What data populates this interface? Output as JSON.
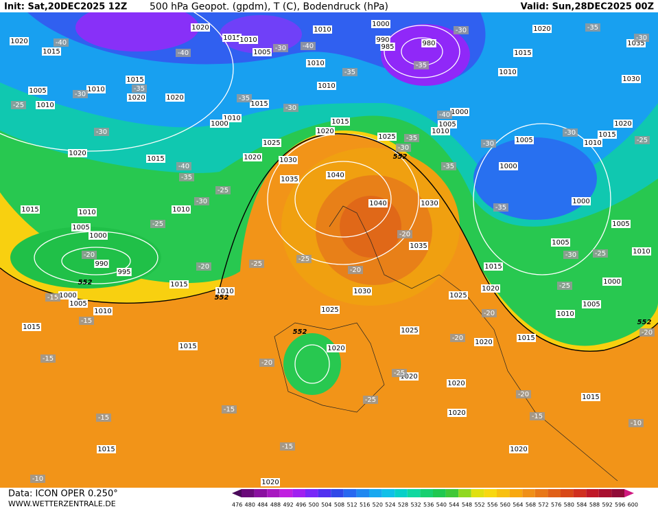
{
  "header": {
    "init": "Init: Sat,20DEC2025 12Z",
    "title": "500 hPa Geopot. (gpdm), T (C), Bodendruck (hPa)",
    "valid": "Valid: Sun,28DEC2025 00Z"
  },
  "footer": {
    "data": "Data: ICON OPER 0.250°",
    "site": "WWW.WETTERZENTRALE.DE"
  },
  "colorbar": {
    "labels": [
      476,
      480,
      484,
      488,
      492,
      496,
      500,
      504,
      508,
      512,
      516,
      520,
      524,
      528,
      532,
      536,
      540,
      544,
      548,
      552,
      556,
      560,
      564,
      568,
      572,
      576,
      580,
      584,
      588,
      592,
      596,
      600
    ],
    "colors": [
      "#4a0a5a",
      "#6a0a7a",
      "#8a10a0",
      "#a818c0",
      "#c020e0",
      "#a020f0",
      "#7828f8",
      "#5030f0",
      "#3048e8",
      "#2868f0",
      "#2088f0",
      "#18a8f0",
      "#10c0e8",
      "#08d0c8",
      "#10d8a0",
      "#18d070",
      "#20c850",
      "#40c838",
      "#90d820",
      "#e0e010",
      "#f8d810",
      "#f8c010",
      "#f8a810",
      "#f09018",
      "#e87818",
      "#e06018",
      "#d84818",
      "#d03020",
      "#c01828",
      "#a81030",
      "#900c38",
      "#d01880"
    ]
  },
  "map": {
    "pressure_labels": [
      1020,
      1015,
      1020,
      1015,
      1010,
      1005,
      1010,
      1000,
      990,
      985,
      980,
      1010,
      1010,
      1020,
      1015,
      1035,
      1010,
      1030,
      1005,
      1010,
      1015,
      1020,
      1010,
      1020,
      1015,
      1010,
      1000,
      1000,
      1005,
      1010,
      1015,
      1020,
      1025,
      1025,
      1020,
      1020,
      1015,
      1030,
      1035,
      1040,
      1020,
      1015,
      1010,
      1005,
      1000,
      1040,
      1030,
      1000,
      1015,
      1010,
      1010,
      1005,
      1000,
      990,
      995,
      1035,
      1005,
      1005,
      1010,
      1015,
      1015,
      1010,
      1000,
      1005,
      1010,
      1015,
      1030,
      1025,
      1020,
      1025,
      1000,
      1005,
      1010,
      1025,
      1015,
      1020,
      1015,
      1020,
      1020,
      1020,
      1015,
      1020,
      1015,
      1020,
      1020
    ],
    "temperature_labels": [
      -40,
      -40,
      -30,
      -40,
      -35,
      -35,
      -30,
      -25,
      -30,
      -35,
      -30,
      -35,
      -30,
      -35,
      -30,
      -40,
      -30,
      -35,
      -30,
      -30,
      -25,
      -35,
      -40,
      -35,
      -25,
      -30,
      -25,
      -35,
      -20,
      -20,
      -20,
      -25,
      -25,
      -20,
      -30,
      -25,
      -25,
      -20,
      -15,
      -15,
      -20,
      -15,
      -20,
      -25,
      -25,
      -20,
      -15,
      -15,
      -15,
      -15,
      -10,
      -10,
      -20
    ],
    "height_labels": [
      552,
      552,
      552,
      552,
      552
    ]
  }
}
